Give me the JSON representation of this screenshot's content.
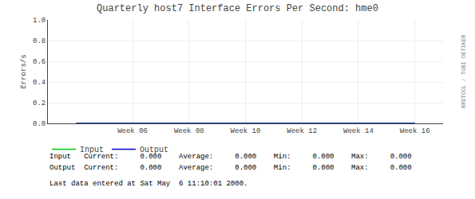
{
  "chart_data": {
    "type": "line",
    "title": "Quarterly host7 Interface Errors Per Second: hme0",
    "y_label": "Errors/s",
    "categories": [
      null,
      "Week 06",
      "Week 08",
      "Week 10",
      "Week 12",
      "Week 14",
      "Week 16"
    ],
    "series": [
      {
        "name": "Input",
        "color": "#00cc00",
        "values": [
          0,
          0,
          0,
          0,
          0,
          0,
          0
        ]
      },
      {
        "name": "Output",
        "color": "#0000cc",
        "values": [
          0,
          0,
          0,
          0,
          0,
          0,
          0
        ]
      }
    ],
    "ylim": [
      0.0,
      1.0
    ],
    "yticks": [
      {
        "value": 0.0,
        "label": "0.0"
      },
      {
        "value": 0.2,
        "label": "0.2"
      },
      {
        "value": 0.4,
        "label": "0.4"
      },
      {
        "value": 0.6,
        "label": "0.6"
      },
      {
        "value": 0.8,
        "label": "0.8"
      },
      {
        "value": 1.0,
        "label": "1.0"
      }
    ],
    "grid": true,
    "legend": "bottom",
    "annotations": [
      "Input   Current:     0.000    Average:     0.000    Min:     0.000    Max:     0.000",
      "Output  Current:     0.000    Average:     0.000    Min:     0.000    Max:     0.000",
      "Last data entered at Sat May  6 11:10:01 2000.",
      "RRDTOOL / TOBI OETIKER"
    ]
  }
}
